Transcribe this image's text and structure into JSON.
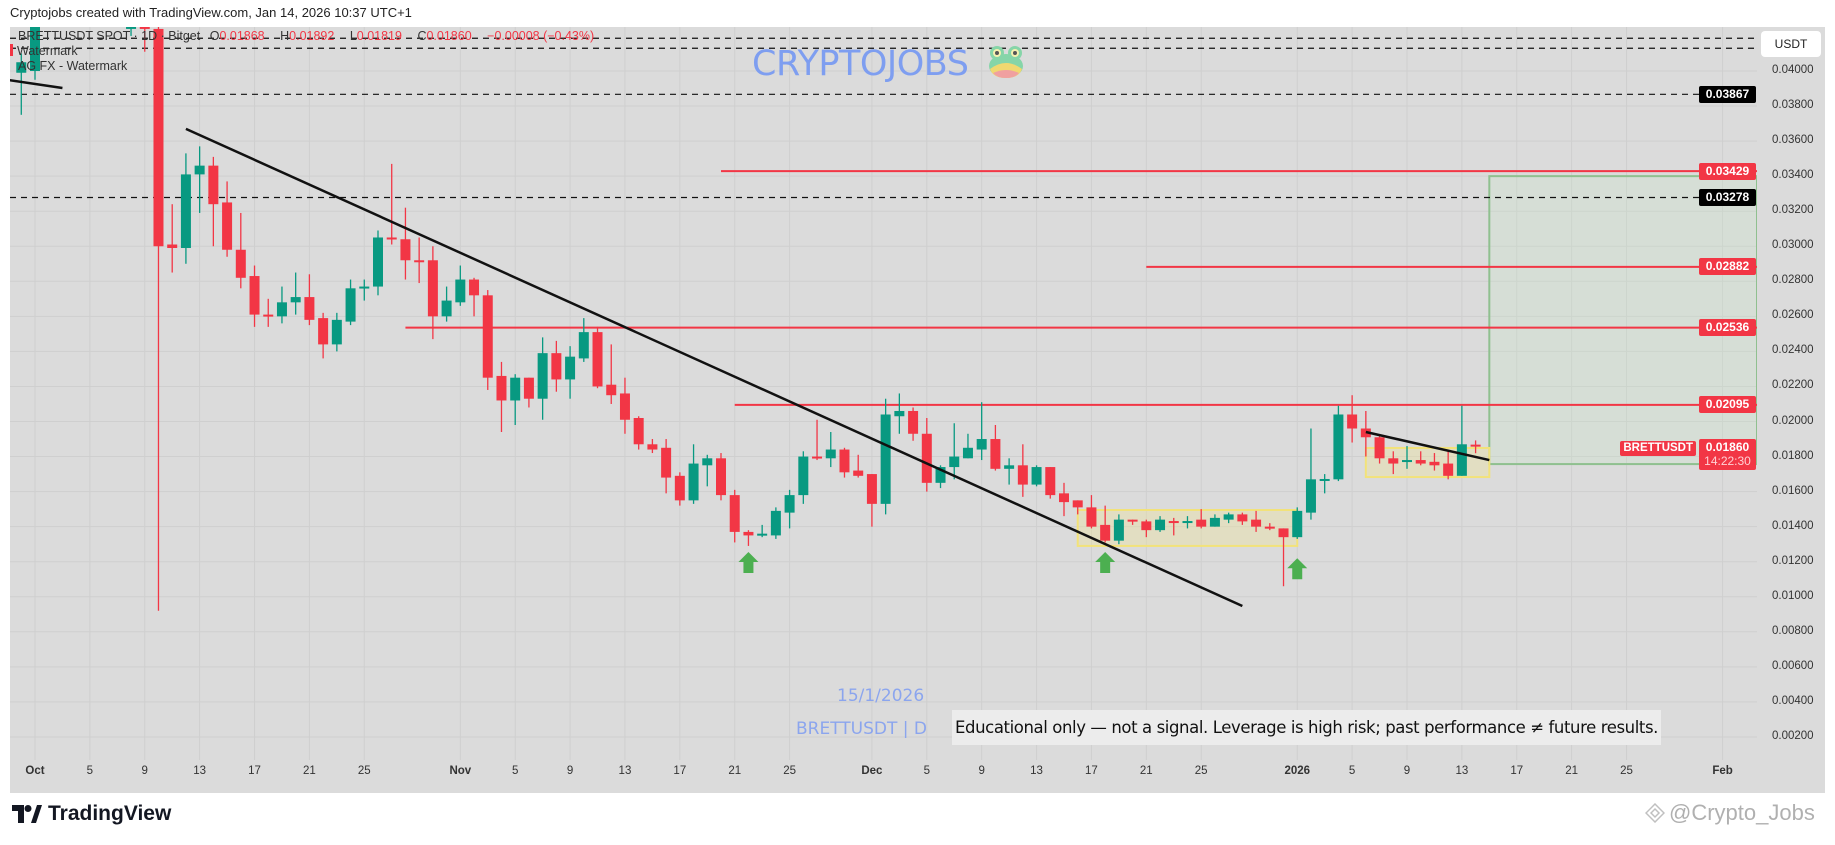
{
  "header": {
    "caption": "Cryptojobs created with TradingView.com, Jan 14, 2026 10:37 UTC+1"
  },
  "legend": {
    "symbol": "BRETTUSDT SPOT · 1D · Bitget",
    "o_label": "O",
    "o": "0.01868",
    "h_label": "H",
    "h": "0.01892",
    "l_label": "L",
    "l": "0.01819",
    "c_label": "C",
    "c": "0.01860",
    "change": "−0.00008 (−0.43%)",
    "indicators": [
      "Watermark",
      "AG FX - Watermark"
    ]
  },
  "watermark": {
    "text": "CRYPTOJOBS",
    "icon": "frog-icon",
    "date": "15/1/2026",
    "symbol_line": "BRETTUSDT | D"
  },
  "disclaimer": "Educational only — not a signal. Leverage is high risk; past performance ≠ future results.",
  "price_axis": {
    "currency": "USDT",
    "ticks": [
      "0.04000",
      "0.03800",
      "0.03600",
      "0.03400",
      "0.03200",
      "0.03000",
      "0.02800",
      "0.02600",
      "0.02400",
      "0.02200",
      "0.02000",
      "0.01800",
      "0.01600",
      "0.01400",
      "0.01200",
      "0.01000",
      "0.00800",
      "0.00600",
      "0.00400",
      "0.00200"
    ],
    "badges": [
      {
        "text": "0.03867",
        "price": 0.03867,
        "color": "#000000"
      },
      {
        "text": "0.03429",
        "price": 0.03429,
        "color": "#f23645"
      },
      {
        "text": "0.03278",
        "price": 0.03278,
        "color": "#000000"
      },
      {
        "text": "0.02882",
        "price": 0.02882,
        "color": "#f23645"
      },
      {
        "text": "0.02536",
        "price": 0.02536,
        "color": "#f23645"
      },
      {
        "text": "0.02095",
        "price": 0.02095,
        "color": "#f23645"
      }
    ],
    "current": {
      "symbol": "BRETTUSDT",
      "price": "0.01860",
      "countdown": "14:22:30"
    }
  },
  "time_axis": [
    {
      "label": "Oct",
      "date": "2025-10-01"
    },
    {
      "label": "5",
      "date": "2025-10-05"
    },
    {
      "label": "9",
      "date": "2025-10-09"
    },
    {
      "label": "13",
      "date": "2025-10-13"
    },
    {
      "label": "17",
      "date": "2025-10-17"
    },
    {
      "label": "21",
      "date": "2025-10-21"
    },
    {
      "label": "25",
      "date": "2025-10-25"
    },
    {
      "label": "Nov",
      "date": "2025-11-01"
    },
    {
      "label": "5",
      "date": "2025-11-05"
    },
    {
      "label": "9",
      "date": "2025-11-09"
    },
    {
      "label": "13",
      "date": "2025-11-13"
    },
    {
      "label": "17",
      "date": "2025-11-17"
    },
    {
      "label": "21",
      "date": "2025-11-21"
    },
    {
      "label": "25",
      "date": "2025-11-25"
    },
    {
      "label": "Dec",
      "date": "2025-12-01"
    },
    {
      "label": "5",
      "date": "2025-12-05"
    },
    {
      "label": "9",
      "date": "2025-12-09"
    },
    {
      "label": "13",
      "date": "2025-12-13"
    },
    {
      "label": "17",
      "date": "2025-12-17"
    },
    {
      "label": "21",
      "date": "2025-12-21"
    },
    {
      "label": "25",
      "date": "2025-12-25"
    },
    {
      "label": "2026",
      "date": "2026-01-01"
    },
    {
      "label": "5",
      "date": "2026-01-05"
    },
    {
      "label": "9",
      "date": "2026-01-09"
    },
    {
      "label": "13",
      "date": "2026-01-13"
    },
    {
      "label": "17",
      "date": "2026-01-17"
    },
    {
      "label": "21",
      "date": "2026-01-21"
    },
    {
      "label": "25",
      "date": "2026-01-25"
    },
    {
      "label": "Feb",
      "date": "2026-02-01"
    }
  ],
  "colors": {
    "up": "#089981",
    "down": "#f23645",
    "level": "#f23645",
    "arrow": "#4caf50",
    "box": "#f2e27a",
    "target": "#8fc08f"
  },
  "chart_data": {
    "type": "candlestick",
    "symbol": "BRETTUSDT",
    "interval": "1D",
    "ylim": [
      0.0,
      0.0425
    ],
    "columns": [
      "date",
      "open",
      "high",
      "low",
      "close"
    ],
    "candles": [
      [
        "2025-09-30",
        0.0399,
        0.041,
        0.0375,
        0.0405
      ],
      [
        "2025-10-01",
        0.04,
        0.044,
        0.0395,
        0.043
      ],
      [
        "2025-10-08",
        0.0424,
        0.0445,
        0.042,
        0.044
      ],
      [
        "2025-10-09",
        0.0427,
        0.044,
        0.0411,
        0.0424
      ],
      [
        "2025-10-10",
        0.0424,
        0.043,
        0.0092,
        0.03
      ],
      [
        "2025-10-11",
        0.0301,
        0.0324,
        0.0285,
        0.0299
      ],
      [
        "2025-10-12",
        0.0299,
        0.0353,
        0.029,
        0.0341
      ],
      [
        "2025-10-13",
        0.0341,
        0.0357,
        0.0319,
        0.0346
      ],
      [
        "2025-10-14",
        0.0346,
        0.0351,
        0.03,
        0.0324
      ],
      [
        "2025-10-15",
        0.0325,
        0.0337,
        0.0294,
        0.0298
      ],
      [
        "2025-10-16",
        0.0298,
        0.0319,
        0.0276,
        0.0282
      ],
      [
        "2025-10-17",
        0.0283,
        0.0289,
        0.0254,
        0.0261
      ],
      [
        "2025-10-18",
        0.0261,
        0.027,
        0.0254,
        0.026
      ],
      [
        "2025-10-19",
        0.026,
        0.0277,
        0.0256,
        0.0268
      ],
      [
        "2025-10-20",
        0.0268,
        0.0285,
        0.0261,
        0.0271
      ],
      [
        "2025-10-21",
        0.0271,
        0.0284,
        0.0255,
        0.0258
      ],
      [
        "2025-10-22",
        0.0259,
        0.0262,
        0.0236,
        0.0244
      ],
      [
        "2025-10-23",
        0.0244,
        0.0262,
        0.024,
        0.0258
      ],
      [
        "2025-10-24",
        0.0257,
        0.0281,
        0.0255,
        0.0276
      ],
      [
        "2025-10-25",
        0.0276,
        0.0281,
        0.0269,
        0.0277
      ],
      [
        "2025-10-26",
        0.0277,
        0.0309,
        0.0272,
        0.0305
      ],
      [
        "2025-10-27",
        0.0305,
        0.0347,
        0.0301,
        0.0304
      ],
      [
        "2025-10-28",
        0.0304,
        0.0322,
        0.0281,
        0.0292
      ],
      [
        "2025-10-29",
        0.0292,
        0.0305,
        0.0279,
        0.0291
      ],
      [
        "2025-10-30",
        0.0292,
        0.03,
        0.0247,
        0.026
      ],
      [
        "2025-10-31",
        0.026,
        0.0277,
        0.0257,
        0.0269
      ],
      [
        "2025-11-01",
        0.0268,
        0.0289,
        0.0266,
        0.0281
      ],
      [
        "2025-11-02",
        0.0281,
        0.0282,
        0.026,
        0.0272
      ],
      [
        "2025-11-03",
        0.0272,
        0.0275,
        0.0218,
        0.0225
      ],
      [
        "2025-11-04",
        0.0226,
        0.0234,
        0.0194,
        0.0212
      ],
      [
        "2025-11-05",
        0.0212,
        0.0227,
        0.0198,
        0.0225
      ],
      [
        "2025-11-06",
        0.0225,
        0.0225,
        0.0208,
        0.0213
      ],
      [
        "2025-11-07",
        0.0213,
        0.0248,
        0.0201,
        0.0239
      ],
      [
        "2025-11-08",
        0.0239,
        0.0246,
        0.0217,
        0.0224
      ],
      [
        "2025-11-09",
        0.0224,
        0.0243,
        0.0213,
        0.0237
      ],
      [
        "2025-11-10",
        0.0236,
        0.0259,
        0.0234,
        0.0251
      ],
      [
        "2025-11-11",
        0.0251,
        0.0254,
        0.0219,
        0.022
      ],
      [
        "2025-11-12",
        0.0221,
        0.0244,
        0.021,
        0.0215
      ],
      [
        "2025-11-13",
        0.0216,
        0.0225,
        0.0193,
        0.0201
      ],
      [
        "2025-11-14",
        0.0202,
        0.0203,
        0.0184,
        0.0187
      ],
      [
        "2025-11-15",
        0.0187,
        0.019,
        0.0182,
        0.0184
      ],
      [
        "2025-11-16",
        0.0185,
        0.019,
        0.0159,
        0.0168
      ],
      [
        "2025-11-17",
        0.0169,
        0.0171,
        0.0152,
        0.0155
      ],
      [
        "2025-11-18",
        0.0155,
        0.0187,
        0.0153,
        0.0176
      ],
      [
        "2025-11-19",
        0.0175,
        0.0181,
        0.0163,
        0.0179
      ],
      [
        "2025-11-20",
        0.0179,
        0.0182,
        0.0155,
        0.0158
      ],
      [
        "2025-11-21",
        0.0158,
        0.0161,
        0.0131,
        0.0137
      ],
      [
        "2025-11-22",
        0.0137,
        0.0138,
        0.0129,
        0.0135
      ],
      [
        "2025-11-23",
        0.0135,
        0.0141,
        0.0134,
        0.0136
      ],
      [
        "2025-11-24",
        0.0135,
        0.0151,
        0.0133,
        0.0149
      ],
      [
        "2025-11-25",
        0.0148,
        0.0161,
        0.0139,
        0.0158
      ],
      [
        "2025-11-26",
        0.0158,
        0.0183,
        0.0153,
        0.018
      ],
      [
        "2025-11-27",
        0.018,
        0.0201,
        0.0178,
        0.0179
      ],
      [
        "2025-11-28",
        0.0179,
        0.0194,
        0.0174,
        0.0184
      ],
      [
        "2025-11-29",
        0.0184,
        0.0185,
        0.0168,
        0.0171
      ],
      [
        "2025-11-30",
        0.0172,
        0.0181,
        0.0168,
        0.0169
      ],
      [
        "2025-12-01",
        0.017,
        0.017,
        0.014,
        0.0153
      ],
      [
        "2025-12-02",
        0.0153,
        0.0213,
        0.0147,
        0.0204
      ],
      [
        "2025-12-03",
        0.0203,
        0.0216,
        0.0193,
        0.0206
      ],
      [
        "2025-12-04",
        0.0206,
        0.0208,
        0.0189,
        0.0193
      ],
      [
        "2025-12-05",
        0.0193,
        0.0202,
        0.016,
        0.0165
      ],
      [
        "2025-12-06",
        0.0165,
        0.0175,
        0.0162,
        0.0174
      ],
      [
        "2025-12-07",
        0.0174,
        0.0199,
        0.0167,
        0.018
      ],
      [
        "2025-12-08",
        0.0179,
        0.0193,
        0.0179,
        0.0185
      ],
      [
        "2025-12-09",
        0.0184,
        0.0211,
        0.0178,
        0.019
      ],
      [
        "2025-12-10",
        0.019,
        0.0198,
        0.0172,
        0.0173
      ],
      [
        "2025-12-11",
        0.0173,
        0.0179,
        0.0164,
        0.0175
      ],
      [
        "2025-12-12",
        0.0175,
        0.0187,
        0.0157,
        0.0164
      ],
      [
        "2025-12-13",
        0.0164,
        0.0175,
        0.0163,
        0.0174
      ],
      [
        "2025-12-14",
        0.0174,
        0.0174,
        0.0156,
        0.0158
      ],
      [
        "2025-12-15",
        0.0159,
        0.0165,
        0.0146,
        0.0154
      ],
      [
        "2025-12-16",
        0.0155,
        0.0155,
        0.0147,
        0.0151
      ],
      [
        "2025-12-17",
        0.0151,
        0.0158,
        0.0139,
        0.014
      ],
      [
        "2025-12-18",
        0.0141,
        0.0152,
        0.0131,
        0.0132
      ],
      [
        "2025-12-19",
        0.0132,
        0.0147,
        0.013,
        0.0144
      ],
      [
        "2025-12-20",
        0.0144,
        0.0144,
        0.0141,
        0.0143
      ],
      [
        "2025-12-21",
        0.0143,
        0.0144,
        0.0134,
        0.0138
      ],
      [
        "2025-12-22",
        0.0138,
        0.0146,
        0.0137,
        0.0144
      ],
      [
        "2025-12-23",
        0.01432,
        0.0145,
        0.0135,
        0.01428
      ],
      [
        "2025-12-24",
        0.01428,
        0.0146,
        0.0139,
        0.01432
      ],
      [
        "2025-12-25",
        0.0144,
        0.015,
        0.0139,
        0.014
      ],
      [
        "2025-12-26",
        0.014,
        0.0147,
        0.014,
        0.0145
      ],
      [
        "2025-12-27",
        0.0144,
        0.0148,
        0.0142,
        0.0147
      ],
      [
        "2025-12-28",
        0.0147,
        0.0148,
        0.0141,
        0.0143
      ],
      [
        "2025-12-29",
        0.0144,
        0.0149,
        0.0137,
        0.014
      ],
      [
        "2025-12-30",
        0.014,
        0.0142,
        0.0138,
        0.0139
      ],
      [
        "2025-12-31",
        0.0139,
        0.0139,
        0.0106,
        0.0134
      ],
      [
        "2026-01-01",
        0.0134,
        0.0151,
        0.0133,
        0.0149
      ],
      [
        "2026-01-02",
        0.0148,
        0.0196,
        0.0144,
        0.0167
      ],
      [
        "2026-01-03",
        0.01668,
        0.017,
        0.0159,
        0.01672
      ],
      [
        "2026-01-04",
        0.0167,
        0.0209,
        0.0166,
        0.0204
      ],
      [
        "2026-01-05",
        0.0204,
        0.0215,
        0.0188,
        0.0196
      ],
      [
        "2026-01-06",
        0.0196,
        0.0206,
        0.018,
        0.0191
      ],
      [
        "2026-01-07",
        0.0191,
        0.0192,
        0.0176,
        0.0179
      ],
      [
        "2026-01-08",
        0.0179,
        0.0183,
        0.017,
        0.0176
      ],
      [
        "2026-01-09",
        0.0177,
        0.0186,
        0.0173,
        0.0178
      ],
      [
        "2026-01-10",
        0.0178,
        0.0183,
        0.0175,
        0.0176
      ],
      [
        "2026-01-11",
        0.0177,
        0.0182,
        0.0172,
        0.0175
      ],
      [
        "2026-01-12",
        0.0176,
        0.0183,
        0.0167,
        0.0169
      ],
      [
        "2026-01-13",
        0.0169,
        0.0209,
        0.0169,
        0.0187
      ],
      [
        "2026-01-14",
        0.01868,
        0.01892,
        0.01819,
        0.0186
      ]
    ],
    "dashed_levels": [
      0.04187,
      0.0413,
      0.03867,
      0.03278
    ],
    "resistance_levels": [
      {
        "price": 0.03429,
        "from": "2025-11-20"
      },
      {
        "price": 0.02882,
        "from": "2025-12-21"
      },
      {
        "price": 0.02536,
        "from": "2025-10-28"
      },
      {
        "price": 0.02095,
        "from": "2025-11-21"
      }
    ],
    "trendlines": [
      {
        "from": [
          "2025-10-12",
          0.0367
        ],
        "to": [
          "2025-12-28",
          0.00947
        ]
      },
      {
        "from": [
          "2026-01-06",
          0.0194
        ],
        "to": [
          "2026-01-15",
          0.0178
        ]
      },
      {
        "from": [
          "2025-09-29",
          0.03949
        ],
        "to": [
          "2025-10-03",
          0.03903
        ]
      }
    ],
    "consolidation_boxes": [
      {
        "from": "2025-12-16",
        "to": "2026-01-01",
        "top": 0.01495,
        "bottom": 0.0129
      },
      {
        "from": "2026-01-06",
        "to": "2026-01-15",
        "top": 0.01849,
        "bottom": 0.01683
      }
    ],
    "target_box": {
      "from": "2026-01-15",
      "top": 0.034,
      "bottom": 0.01757
    },
    "buy_arrows": [
      {
        "date": "2025-11-22",
        "price": 0.01255
      },
      {
        "date": "2025-12-18",
        "price": 0.01255
      },
      {
        "date": "2026-01-01",
        "price": 0.0122
      }
    ]
  },
  "footer": {
    "brand": "TradingView",
    "credit": "@Crypto_Jobs"
  }
}
